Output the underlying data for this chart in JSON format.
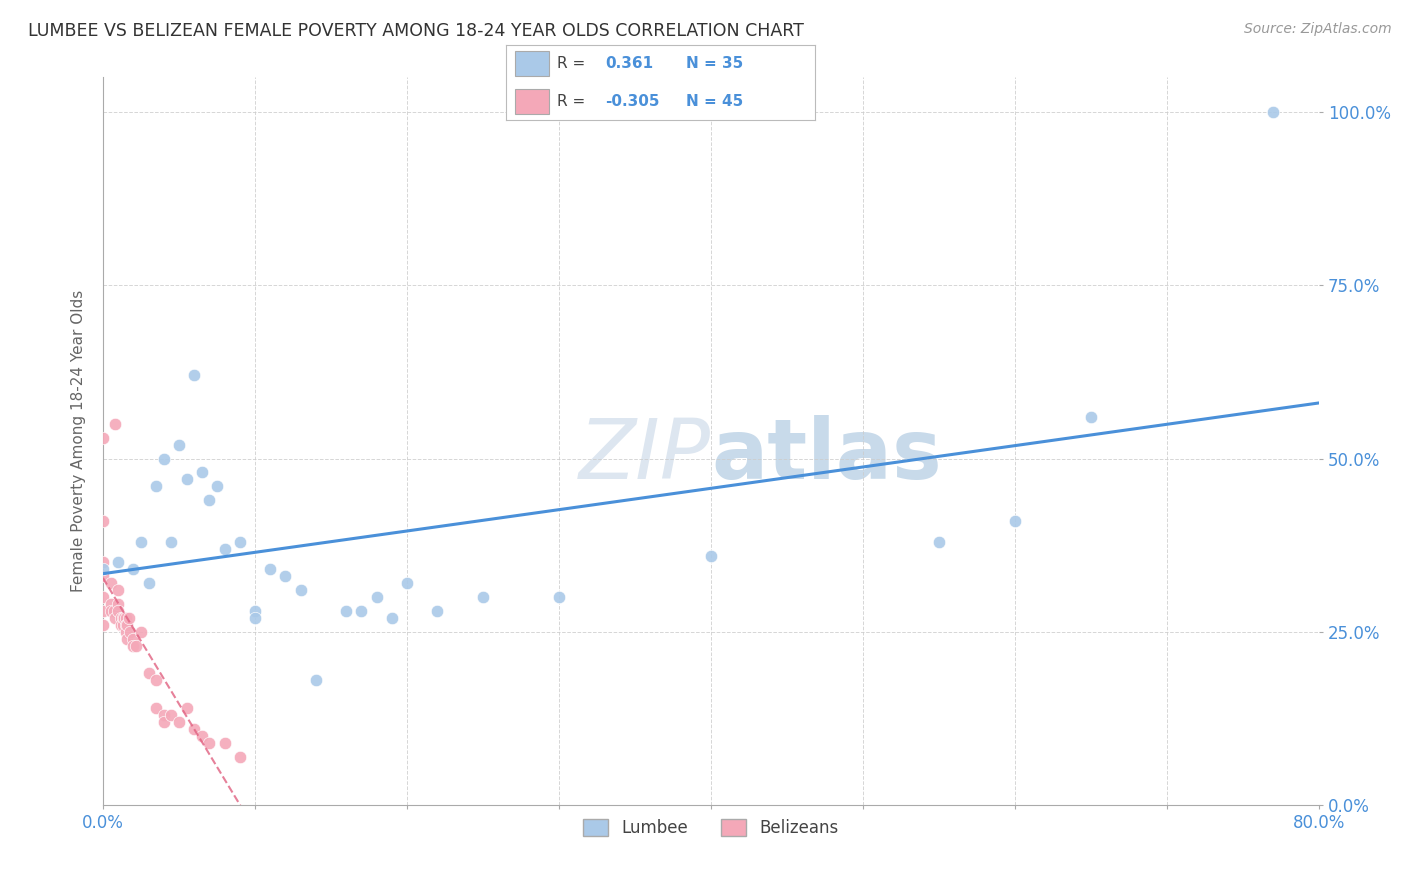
{
  "title": "LUMBEE VS BELIZEAN FEMALE POVERTY AMONG 18-24 YEAR OLDS CORRELATION CHART",
  "source": "Source: ZipAtlas.com",
  "ylabel": "Female Poverty Among 18-24 Year Olds",
  "xlim": [
    0.0,
    0.8
  ],
  "ylim": [
    0.0,
    1.05
  ],
  "lumbee_R": 0.361,
  "lumbee_N": 35,
  "belizean_R": -0.305,
  "belizean_N": 45,
  "lumbee_color": "#aac9e8",
  "belizean_color": "#f4a8b8",
  "lumbee_line_color": "#4a90d9",
  "belizean_line_color": "#e06080",
  "watermark_color": "#dde6f0",
  "background_color": "#ffffff",
  "grid_color": "#cccccc",
  "lumbee_x": [
    0.0,
    0.01,
    0.02,
    0.025,
    0.03,
    0.035,
    0.04,
    0.045,
    0.05,
    0.055,
    0.06,
    0.065,
    0.07,
    0.075,
    0.08,
    0.09,
    0.1,
    0.1,
    0.11,
    0.12,
    0.13,
    0.14,
    0.16,
    0.17,
    0.18,
    0.19,
    0.2,
    0.22,
    0.25,
    0.3,
    0.4,
    0.55,
    0.6,
    0.65,
    0.77
  ],
  "lumbee_y": [
    0.34,
    0.35,
    0.34,
    0.38,
    0.32,
    0.46,
    0.5,
    0.38,
    0.52,
    0.47,
    0.62,
    0.48,
    0.44,
    0.46,
    0.37,
    0.38,
    0.28,
    0.27,
    0.34,
    0.33,
    0.31,
    0.18,
    0.28,
    0.28,
    0.3,
    0.27,
    0.32,
    0.28,
    0.3,
    0.3,
    0.36,
    0.38,
    0.41,
    0.56,
    1.0
  ],
  "belizean_x": [
    0.0,
    0.0,
    0.0,
    0.0,
    0.0,
    0.0,
    0.0,
    0.005,
    0.005,
    0.005,
    0.007,
    0.008,
    0.008,
    0.01,
    0.01,
    0.01,
    0.012,
    0.012,
    0.013,
    0.013,
    0.014,
    0.015,
    0.015,
    0.015,
    0.016,
    0.016,
    0.017,
    0.018,
    0.02,
    0.02,
    0.022,
    0.025,
    0.03,
    0.035,
    0.035,
    0.04,
    0.04,
    0.045,
    0.05,
    0.055,
    0.06,
    0.065,
    0.07,
    0.08,
    0.09
  ],
  "belizean_y": [
    0.53,
    0.41,
    0.35,
    0.33,
    0.3,
    0.28,
    0.26,
    0.32,
    0.29,
    0.28,
    0.28,
    0.55,
    0.27,
    0.31,
    0.29,
    0.28,
    0.27,
    0.26,
    0.27,
    0.26,
    0.27,
    0.27,
    0.26,
    0.25,
    0.26,
    0.24,
    0.27,
    0.25,
    0.24,
    0.23,
    0.23,
    0.25,
    0.19,
    0.18,
    0.14,
    0.13,
    0.12,
    0.13,
    0.12,
    0.14,
    0.11,
    0.1,
    0.09,
    0.09,
    0.07
  ]
}
